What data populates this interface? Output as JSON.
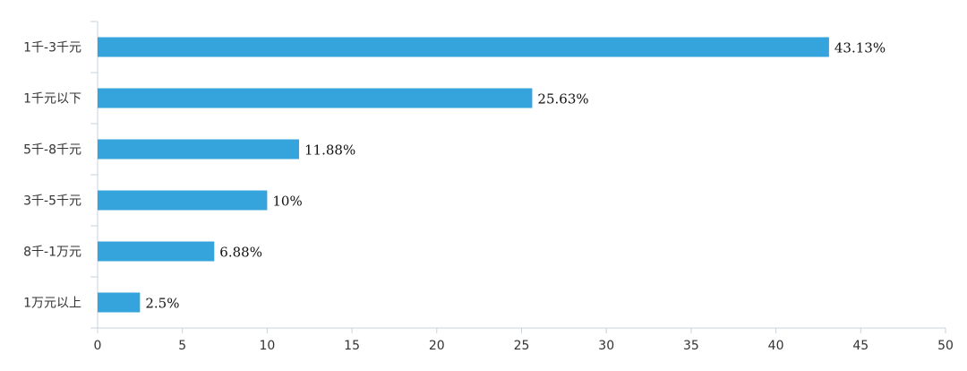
{
  "chart_data": {
    "type": "bar",
    "orientation": "horizontal",
    "categories": [
      "1千-3千元",
      "1千元以下",
      "5千-8千元",
      "3千-5千元",
      "8千-1万元",
      "1万元以上"
    ],
    "values": [
      43.13,
      25.63,
      11.88,
      10,
      6.88,
      2.5
    ],
    "data_labels": [
      "43.13%",
      "25.63%",
      "11.88%",
      "10%",
      "6.88%",
      "2.5%"
    ],
    "x_ticks": [
      "0",
      "5",
      "10",
      "15",
      "20",
      "25",
      "30",
      "35",
      "40",
      "45",
      "50"
    ],
    "xlim": [
      0,
      50
    ],
    "grid": false,
    "legend": "none",
    "title": "",
    "xlabel": "",
    "ylabel": ""
  },
  "colors": {
    "bar": "#35a4dc",
    "axis": "#c7d3dd"
  }
}
